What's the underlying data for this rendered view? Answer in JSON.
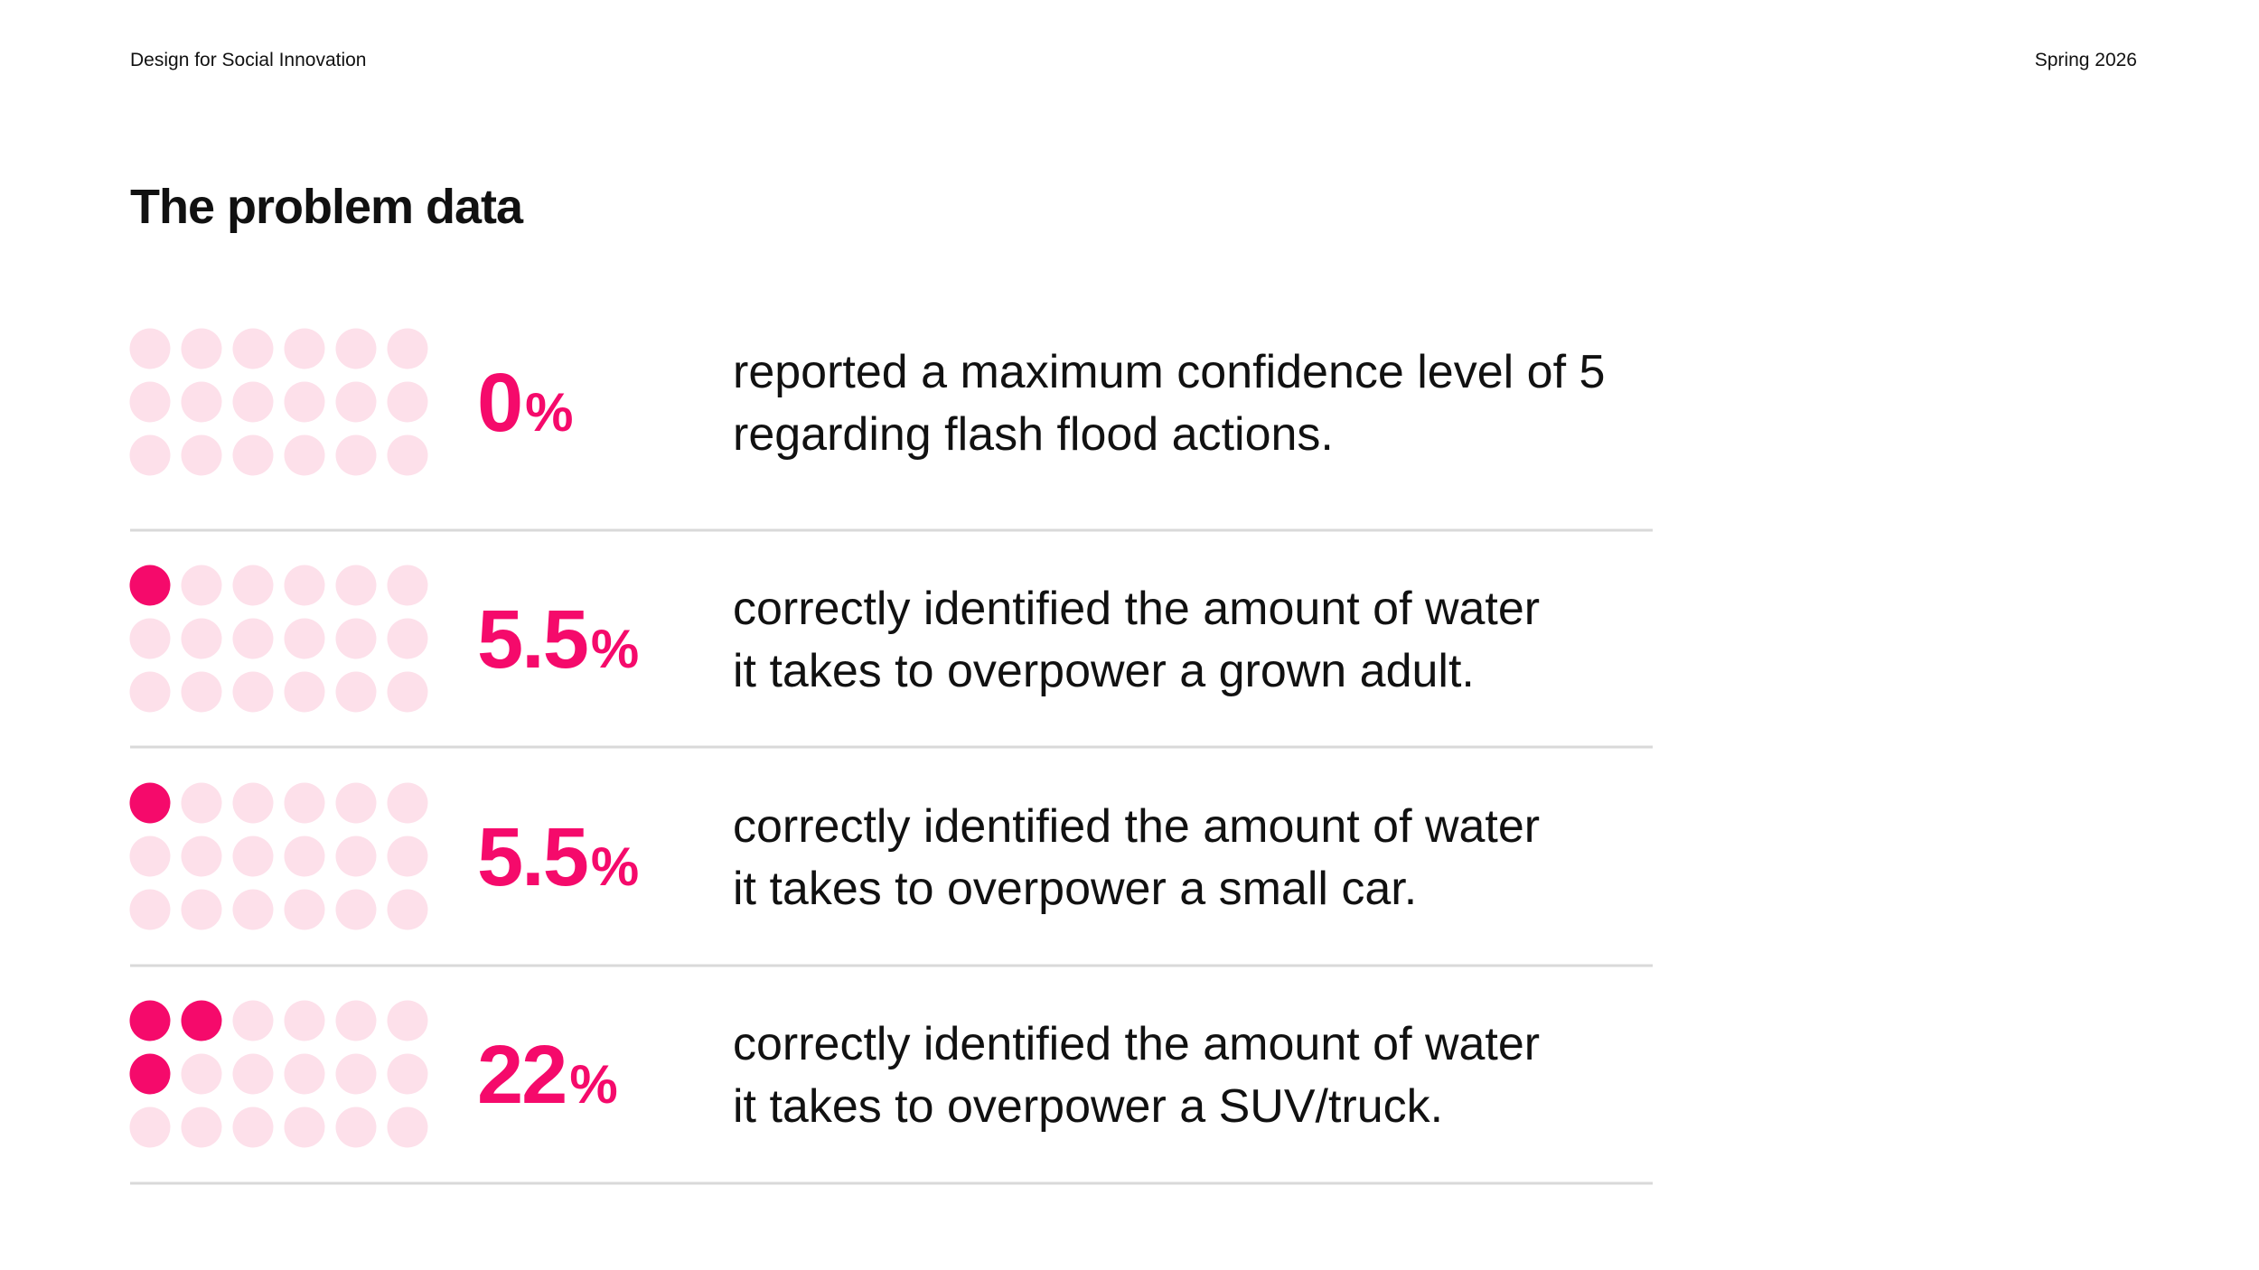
{
  "header": {
    "left": "Design for Social Innovation",
    "right": "Spring 2026"
  },
  "title": "The problem data",
  "rows": [
    {
      "value": 0,
      "unit": "%",
      "dots_filled": 0,
      "lines": [
        "reported a maximum confidence level of 5",
        "regarding flash flood actions."
      ]
    },
    {
      "value": 5.5,
      "unit": "%",
      "dots_filled": 1,
      "lines": [
        "correctly identified the amount of water",
        "it takes to overpower a grown adult."
      ]
    },
    {
      "value": 5.5,
      "unit": "%",
      "dots_filled": 1,
      "lines": [
        "correctly identified the amount of water",
        "it takes to overpower a small car."
      ]
    },
    {
      "value": 22,
      "unit": "%",
      "dots_filled": 3,
      "lines": [
        "correctly identified the amount of water",
        "it takes to overpower a SUV/truck."
      ]
    }
  ]
}
